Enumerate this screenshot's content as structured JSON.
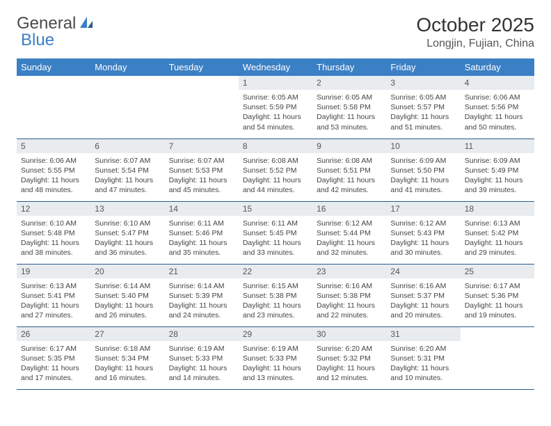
{
  "logo": {
    "text1": "General",
    "text2": "Blue"
  },
  "title": "October 2025",
  "location": "Longjin, Fujian, China",
  "header_bg": "#3b7fc4",
  "daynum_bg": "#e8ecef",
  "row_border": "#2a5a8a",
  "weekdays": [
    "Sunday",
    "Monday",
    "Tuesday",
    "Wednesday",
    "Thursday",
    "Friday",
    "Saturday"
  ],
  "weeks": [
    [
      {
        "n": "",
        "sr": "",
        "ss": "",
        "dl": ""
      },
      {
        "n": "",
        "sr": "",
        "ss": "",
        "dl": ""
      },
      {
        "n": "",
        "sr": "",
        "ss": "",
        "dl": ""
      },
      {
        "n": "1",
        "sr": "6:05 AM",
        "ss": "5:59 PM",
        "dl": "11 hours and 54 minutes."
      },
      {
        "n": "2",
        "sr": "6:05 AM",
        "ss": "5:58 PM",
        "dl": "11 hours and 53 minutes."
      },
      {
        "n": "3",
        "sr": "6:05 AM",
        "ss": "5:57 PM",
        "dl": "11 hours and 51 minutes."
      },
      {
        "n": "4",
        "sr": "6:06 AM",
        "ss": "5:56 PM",
        "dl": "11 hours and 50 minutes."
      }
    ],
    [
      {
        "n": "5",
        "sr": "6:06 AM",
        "ss": "5:55 PM",
        "dl": "11 hours and 48 minutes."
      },
      {
        "n": "6",
        "sr": "6:07 AM",
        "ss": "5:54 PM",
        "dl": "11 hours and 47 minutes."
      },
      {
        "n": "7",
        "sr": "6:07 AM",
        "ss": "5:53 PM",
        "dl": "11 hours and 45 minutes."
      },
      {
        "n": "8",
        "sr": "6:08 AM",
        "ss": "5:52 PM",
        "dl": "11 hours and 44 minutes."
      },
      {
        "n": "9",
        "sr": "6:08 AM",
        "ss": "5:51 PM",
        "dl": "11 hours and 42 minutes."
      },
      {
        "n": "10",
        "sr": "6:09 AM",
        "ss": "5:50 PM",
        "dl": "11 hours and 41 minutes."
      },
      {
        "n": "11",
        "sr": "6:09 AM",
        "ss": "5:49 PM",
        "dl": "11 hours and 39 minutes."
      }
    ],
    [
      {
        "n": "12",
        "sr": "6:10 AM",
        "ss": "5:48 PM",
        "dl": "11 hours and 38 minutes."
      },
      {
        "n": "13",
        "sr": "6:10 AM",
        "ss": "5:47 PM",
        "dl": "11 hours and 36 minutes."
      },
      {
        "n": "14",
        "sr": "6:11 AM",
        "ss": "5:46 PM",
        "dl": "11 hours and 35 minutes."
      },
      {
        "n": "15",
        "sr": "6:11 AM",
        "ss": "5:45 PM",
        "dl": "11 hours and 33 minutes."
      },
      {
        "n": "16",
        "sr": "6:12 AM",
        "ss": "5:44 PM",
        "dl": "11 hours and 32 minutes."
      },
      {
        "n": "17",
        "sr": "6:12 AM",
        "ss": "5:43 PM",
        "dl": "11 hours and 30 minutes."
      },
      {
        "n": "18",
        "sr": "6:13 AM",
        "ss": "5:42 PM",
        "dl": "11 hours and 29 minutes."
      }
    ],
    [
      {
        "n": "19",
        "sr": "6:13 AM",
        "ss": "5:41 PM",
        "dl": "11 hours and 27 minutes."
      },
      {
        "n": "20",
        "sr": "6:14 AM",
        "ss": "5:40 PM",
        "dl": "11 hours and 26 minutes."
      },
      {
        "n": "21",
        "sr": "6:14 AM",
        "ss": "5:39 PM",
        "dl": "11 hours and 24 minutes."
      },
      {
        "n": "22",
        "sr": "6:15 AM",
        "ss": "5:38 PM",
        "dl": "11 hours and 23 minutes."
      },
      {
        "n": "23",
        "sr": "6:16 AM",
        "ss": "5:38 PM",
        "dl": "11 hours and 22 minutes."
      },
      {
        "n": "24",
        "sr": "6:16 AM",
        "ss": "5:37 PM",
        "dl": "11 hours and 20 minutes."
      },
      {
        "n": "25",
        "sr": "6:17 AM",
        "ss": "5:36 PM",
        "dl": "11 hours and 19 minutes."
      }
    ],
    [
      {
        "n": "26",
        "sr": "6:17 AM",
        "ss": "5:35 PM",
        "dl": "11 hours and 17 minutes."
      },
      {
        "n": "27",
        "sr": "6:18 AM",
        "ss": "5:34 PM",
        "dl": "11 hours and 16 minutes."
      },
      {
        "n": "28",
        "sr": "6:19 AM",
        "ss": "5:33 PM",
        "dl": "11 hours and 14 minutes."
      },
      {
        "n": "29",
        "sr": "6:19 AM",
        "ss": "5:33 PM",
        "dl": "11 hours and 13 minutes."
      },
      {
        "n": "30",
        "sr": "6:20 AM",
        "ss": "5:32 PM",
        "dl": "11 hours and 12 minutes."
      },
      {
        "n": "31",
        "sr": "6:20 AM",
        "ss": "5:31 PM",
        "dl": "11 hours and 10 minutes."
      },
      {
        "n": "",
        "sr": "",
        "ss": "",
        "dl": ""
      }
    ]
  ],
  "labels": {
    "sunrise": "Sunrise:",
    "sunset": "Sunset:",
    "daylight": "Daylight:"
  }
}
